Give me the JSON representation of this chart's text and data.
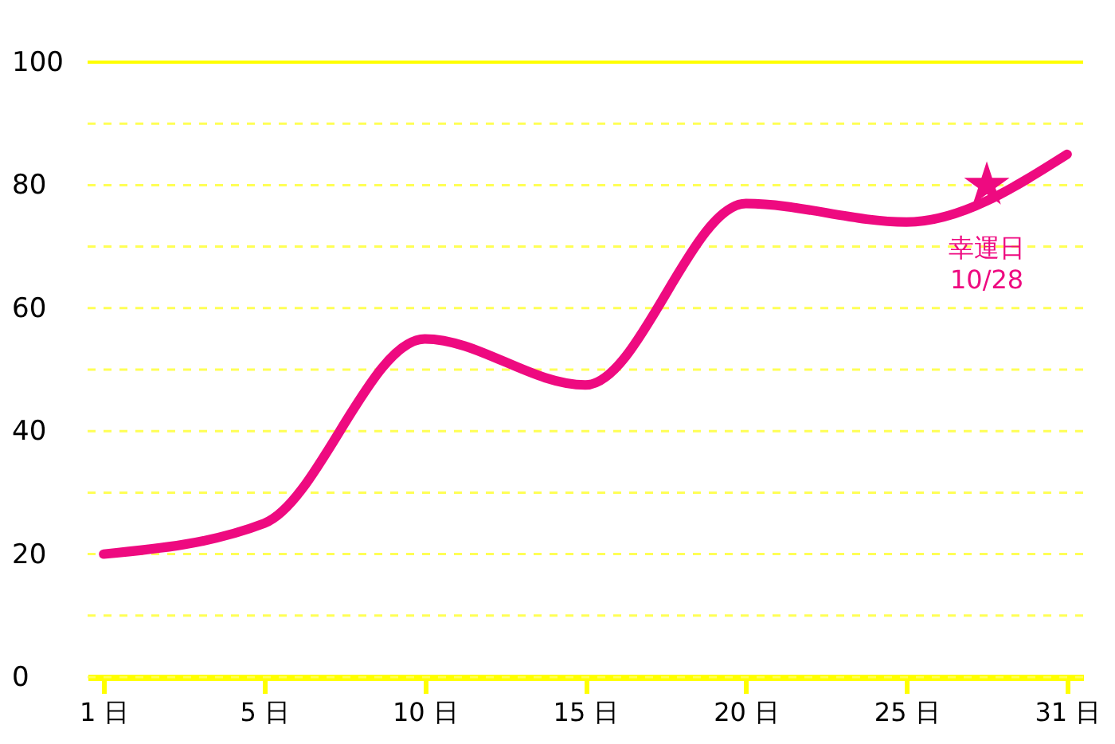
{
  "chart_data": {
    "type": "line",
    "categories": [
      "1 日",
      "5 日",
      "10 日",
      "15 日",
      "20 日",
      "25 日",
      "31 日"
    ],
    "series": [
      {
        "color": "#ee0a80",
        "values": [
          20,
          25,
          55,
          47.5,
          77,
          74,
          85
        ]
      }
    ],
    "ylim": [
      0,
      100
    ],
    "yticks": [
      0,
      {
        "value": 10,
        "label": null
      },
      20,
      {
        "value": 30,
        "label": null
      },
      40,
      {
        "value": 50,
        "label": null
      },
      60,
      {
        "value": 70,
        "label": null
      },
      80,
      {
        "value": 90,
        "label": null
      },
      100
    ],
    "grid": "y",
    "marker": "none",
    "line_style": "solid",
    "annotations": [
      {
        "text": "幸運日\n10/28",
        "y": 80
      }
    ]
  }
}
